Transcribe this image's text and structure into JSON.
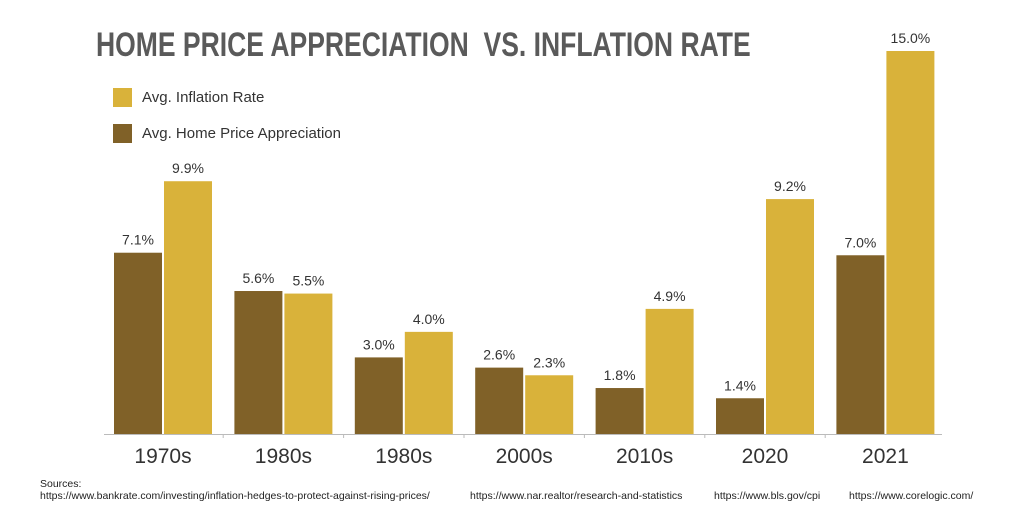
{
  "title": "HOME PRICE APPRECIATION  VS. INFLATION RATE",
  "colors": {
    "inflation": "#d9b23a",
    "home_price": "#806128",
    "axis": "#bbbbbb",
    "text": "#333333"
  },
  "sources": {
    "label": "Sources:",
    "urls": [
      "https://www.bankrate.com/investing/inflation-hedges-to-protect-against-rising-prices/",
      "https://www.nar.realtor/research-and-statistics",
      "https://www.bls.gov/cpi",
      "https://www.corelogic.com/"
    ]
  },
  "chart_data": {
    "type": "bar",
    "title": "HOME PRICE APPRECIATION  VS. INFLATION RATE",
    "xlabel": "",
    "ylabel": "",
    "ylim": [
      0,
      15
    ],
    "grid": false,
    "legend_position": "top-left",
    "categories": [
      "1970s",
      "1980s",
      "1980s",
      "2000s",
      "2010s",
      "2020",
      "2021"
    ],
    "series": [
      {
        "name": "Avg. Home Price Appreciation",
        "color": "#806128",
        "values": [
          7.1,
          5.6,
          3.0,
          2.6,
          1.8,
          1.4,
          7.0
        ],
        "labels": [
          "7.1%",
          "5.6%",
          "3.0%",
          "2.6%",
          "1.8%",
          "1.4%",
          "7.0%"
        ]
      },
      {
        "name": "Avg. Inflation Rate",
        "color": "#d9b23a",
        "values": [
          9.9,
          5.5,
          4.0,
          2.3,
          4.9,
          9.2,
          15.0
        ],
        "labels": [
          "9.9%",
          "5.5%",
          "4.0%",
          "2.3%",
          "4.9%",
          "9.2%",
          "15.0%"
        ]
      }
    ]
  }
}
